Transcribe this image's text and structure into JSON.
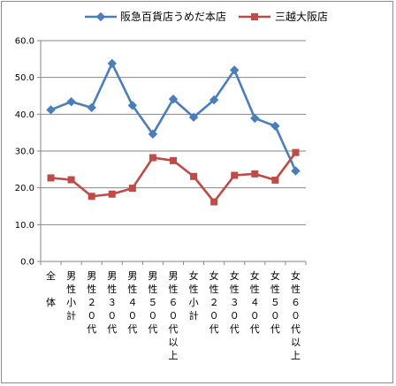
{
  "chart_data": {
    "type": "line",
    "categories": [
      "全体",
      "男性小計",
      "男性２０代",
      "男性３０代",
      "男性４０代",
      "男性５０代",
      "男性６０代以上",
      "女性小計",
      "女性２０代",
      "女性３０代",
      "女性４０代",
      "女性５０代",
      "女性６０代以上"
    ],
    "series": [
      {
        "name": "阪急百貨店うめだ本店",
        "color": "#4a7ebb",
        "marker": "diamond",
        "values": [
          41.2,
          43.4,
          41.8,
          53.8,
          42.4,
          34.6,
          44.1,
          39.2,
          43.9,
          52.0,
          38.9,
          36.8,
          24.6
        ]
      },
      {
        "name": "三越大阪店",
        "color": "#be4b48",
        "marker": "square",
        "values": [
          22.7,
          22.2,
          17.7,
          18.3,
          19.9,
          28.2,
          27.4,
          23.1,
          16.2,
          23.4,
          23.8,
          22.1,
          29.6
        ]
      }
    ],
    "ylim": [
      0,
      60
    ],
    "ytick_labels": [
      "0.0",
      "10.0",
      "20.0",
      "30.0",
      "40.0",
      "50.0",
      "60.0"
    ],
    "grid": true,
    "legend": "top"
  }
}
